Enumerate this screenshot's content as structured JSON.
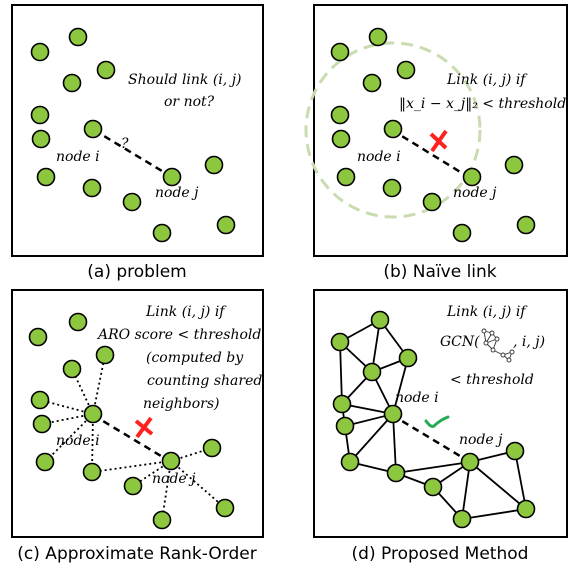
{
  "panels": [
    {
      "caption": "(a) problem",
      "annotation": [
        "Should link (i, j)",
        "or not?"
      ],
      "question_mark": "?",
      "node_i_label": "node i",
      "node_j_label": "node j"
    },
    {
      "caption": "(b) Naïve link",
      "annotation": [
        "Link (i, j) if",
        "‖x_i − x_j‖₂ < threshold"
      ],
      "node_i_label": "node i",
      "node_j_label": "node j"
    },
    {
      "caption": "(c) Approximate Rank-Order",
      "annotation": [
        "Link (i, j) if",
        "ARO score < threshold",
        "(computed by",
        "counting shared",
        "neighbors)"
      ],
      "node_i_label": "node i",
      "node_j_label": "node j"
    },
    {
      "caption": "(d) Proposed Method",
      "annotation": [
        "Link (i, j) if",
        "GCN(",
        ", i, j)",
        "< threshold"
      ],
      "node_i_label": "node i",
      "node_j_label": "node j"
    }
  ],
  "colors": {
    "node_fill": "#8dc63f",
    "reject_mark": "#ff2020",
    "accept_mark": "#22aa55",
    "radius_circle": "#cfe0b8"
  },
  "icons": {
    "reject": "red-cross-icon",
    "accept": "green-check-icon"
  }
}
